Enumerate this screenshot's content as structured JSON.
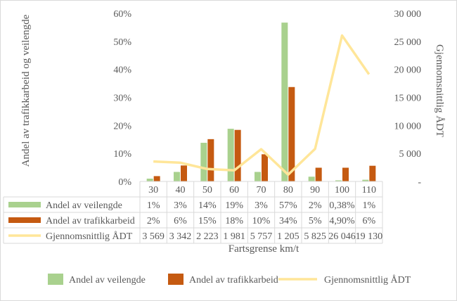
{
  "chart_data": {
    "type": "bar",
    "xlabel": "Fartsgrense km/t",
    "ylabel_left": "Andel av trafikkarbeid og veilengde",
    "ylabel_right": "Gjennomsnittlig ÅDT",
    "ylim_left": [
      0,
      0.6
    ],
    "yticks_left": [
      "0%",
      "10%",
      "20%",
      "30%",
      "40%",
      "50%",
      "60%"
    ],
    "ylim_right": [
      0,
      30000
    ],
    "yticks_right": [
      "-",
      "5 000",
      "10 000",
      "15 000",
      "20 000",
      "25 000",
      "30 000"
    ],
    "categories": [
      "30",
      "40",
      "50",
      "60",
      "70",
      "80",
      "90",
      "100",
      "110"
    ],
    "series": [
      {
        "name": "Andel av veilengde",
        "kind": "bar",
        "axis": "left",
        "color": "#a9d18e",
        "values": [
          0.01,
          0.034,
          0.138,
          0.188,
          0.034,
          0.567,
          0.017,
          0.004,
          0.006
        ],
        "labels": [
          "1%",
          "3%",
          "14%",
          "19%",
          "3%",
          "57%",
          "2%",
          "0,38%",
          "1%"
        ]
      },
      {
        "name": "Andel av trafikkarbeid",
        "kind": "bar",
        "axis": "left",
        "color": "#c55a11",
        "values": [
          0.019,
          0.057,
          0.151,
          0.184,
          0.097,
          0.337,
          0.049,
          0.049,
          0.056
        ],
        "labels": [
          "2%",
          "6%",
          "15%",
          "18%",
          "10%",
          "34%",
          "5%",
          "4,90%",
          "6%"
        ]
      },
      {
        "name": "Gjennomsnittlig ÅDT",
        "kind": "line",
        "axis": "right",
        "color": "#ffe699",
        "values": [
          3569,
          3342,
          2223,
          1981,
          5757,
          1205,
          5825,
          26046,
          19130
        ],
        "labels": [
          "3 569",
          "3 342",
          "2 223",
          "1 981",
          "5 757",
          "1 205",
          "5 825",
          "26 046",
          "19 130"
        ]
      }
    ],
    "legend_position": "bottom",
    "grid": false
  }
}
